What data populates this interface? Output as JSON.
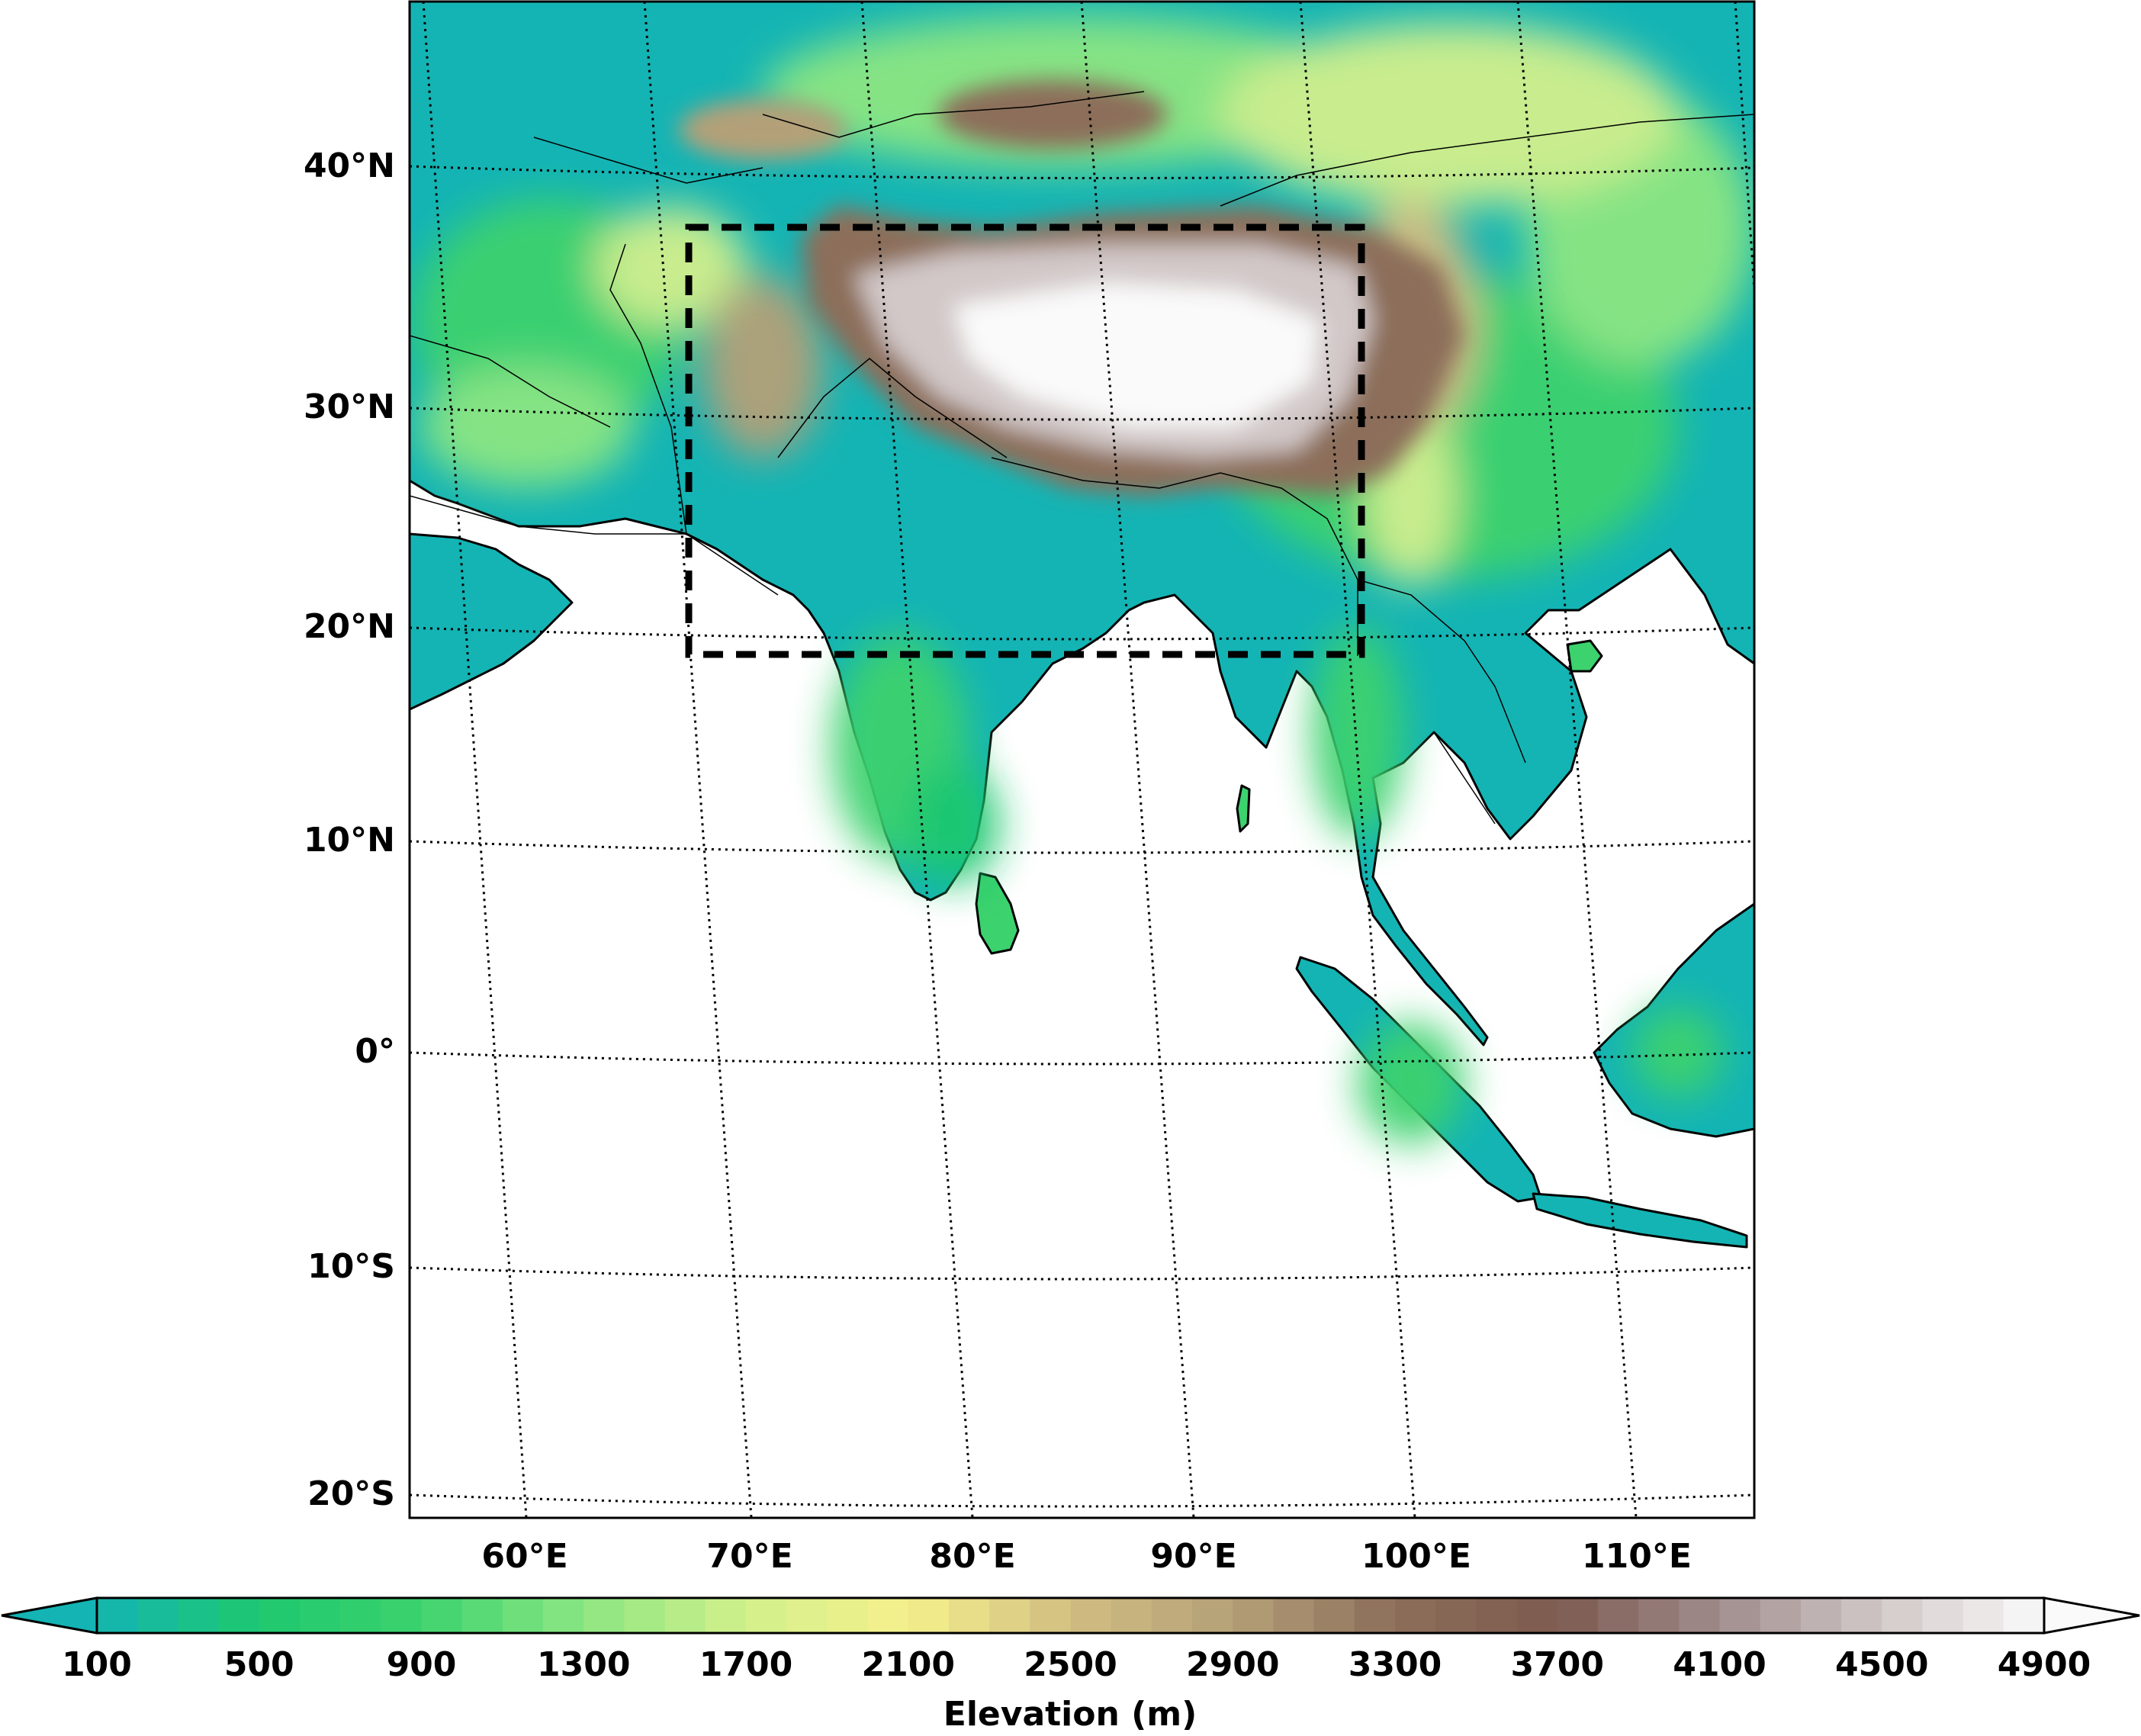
{
  "map": {
    "lat_labels": [
      "40°N",
      "30°N",
      "20°N",
      "10°N",
      "0°",
      "10°S",
      "20°S"
    ],
    "lon_labels": [
      "60°E",
      "70°E",
      "80°E",
      "90°E",
      "100°E",
      "110°E"
    ],
    "region_box": {
      "lon": [
        67,
        98
      ],
      "lat": [
        19,
        38
      ],
      "style": "dashed"
    }
  },
  "colorbar": {
    "ticks": [
      "100",
      "500",
      "900",
      "1300",
      "1700",
      "2100",
      "2500",
      "2900",
      "3300",
      "3700",
      "4100",
      "4500",
      "4900"
    ],
    "label": "Elevation (m)",
    "extend": "both",
    "stops": [
      {
        "value": 100,
        "color": "#14b4b4"
      },
      {
        "value": 500,
        "color": "#1ec86e"
      },
      {
        "value": 900,
        "color": "#3cd26e"
      },
      {
        "value": 1300,
        "color": "#8ce682"
      },
      {
        "value": 1700,
        "color": "#d2f08c"
      },
      {
        "value": 2100,
        "color": "#f5f08c"
      },
      {
        "value": 2500,
        "color": "#d2be82"
      },
      {
        "value": 2900,
        "color": "#b4a078"
      },
      {
        "value": 3300,
        "color": "#8c6e5a"
      },
      {
        "value": 3700,
        "color": "#7d5a50"
      },
      {
        "value": 4100,
        "color": "#a08c8c"
      },
      {
        "value": 4500,
        "color": "#d2c8c8"
      },
      {
        "value": 4900,
        "color": "#fafafa"
      }
    ]
  }
}
